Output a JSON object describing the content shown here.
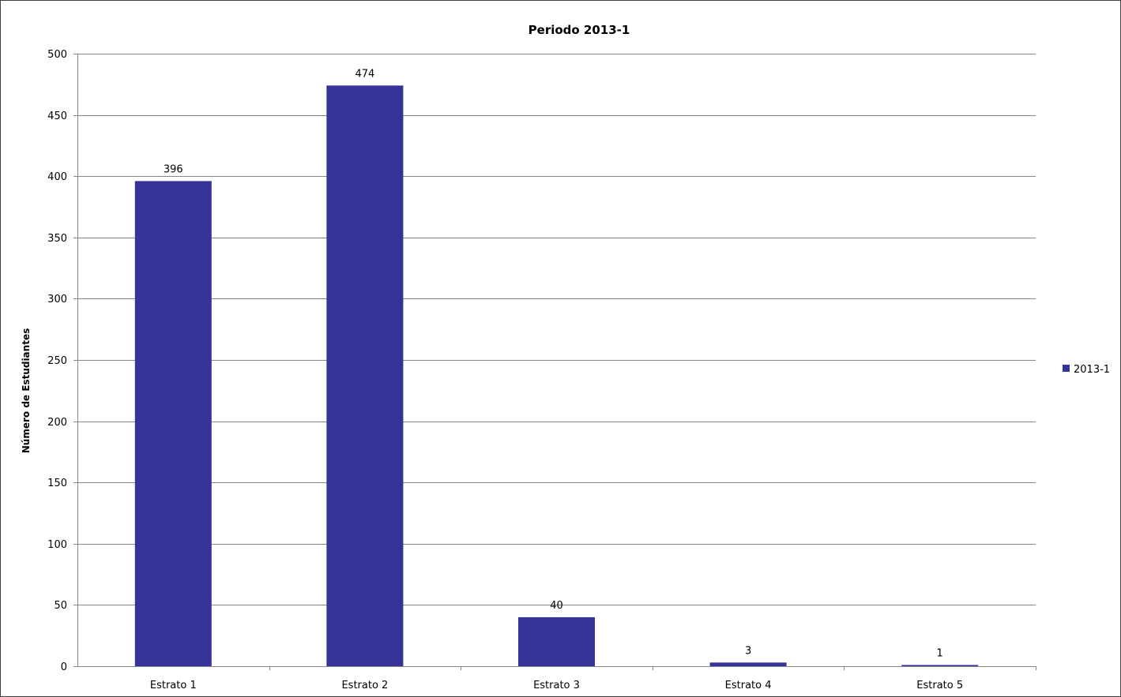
{
  "colors": {
    "bar": "#333399",
    "gridline": "#868686",
    "axis": "#868686",
    "frame": "#404040"
  },
  "chart_data": {
    "type": "bar",
    "title": "Periodo 2013-1",
    "xlabel": "",
    "ylabel": "Número de Estudiantes",
    "categories": [
      "Estrato 1",
      "Estrato 2",
      "Estrato 3",
      "Estrato 4",
      "Estrato 5"
    ],
    "series": [
      {
        "name": "2013-1",
        "values": [
          396,
          474,
          40,
          3,
          1
        ],
        "color": "#333399"
      }
    ],
    "ylim": [
      0,
      500
    ],
    "yticks": [
      0,
      50,
      100,
      150,
      200,
      250,
      300,
      350,
      400,
      450,
      500
    ],
    "grid": true,
    "legend": "right",
    "data_labels": true
  }
}
